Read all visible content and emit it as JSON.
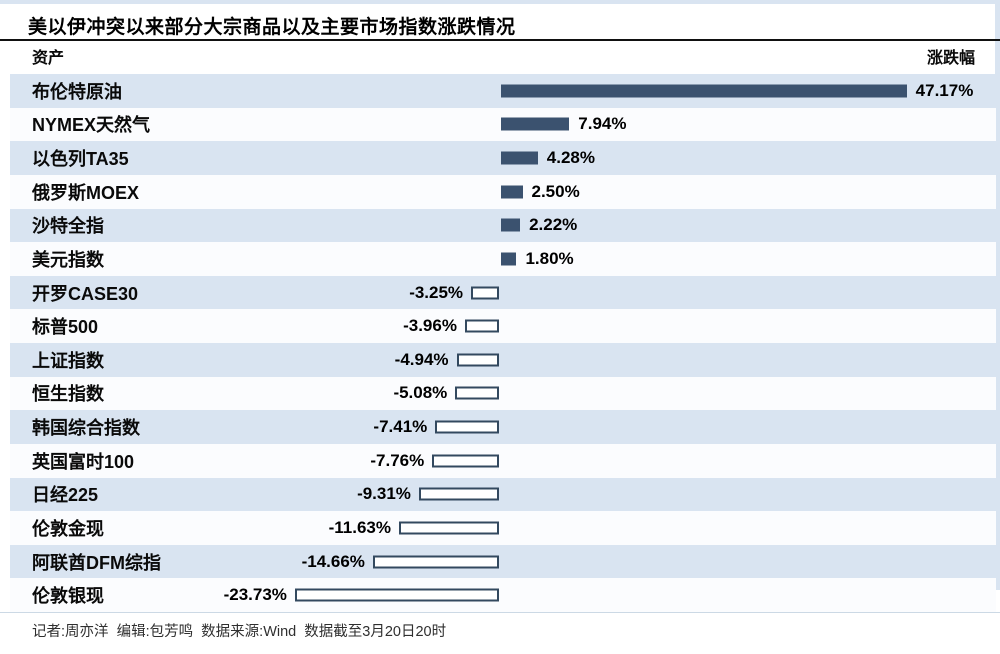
{
  "page": {
    "title": "美以伊冲突以来部分大宗商品以及主要市场指数涨跌情况",
    "columns": {
      "asset": "资产",
      "change": "涨跌幅"
    },
    "footer": "记者:周亦洋  编辑:包芳鸣  数据来源:Wind  数据截至3月20日20时"
  },
  "colors": {
    "bar_positive": "#3b526f",
    "bar_negative_border": "#33495f",
    "row_alt": "#d9e4f1",
    "row_base": "#fbfcfe",
    "axis_line": "#bdd2ea"
  },
  "chart_data": {
    "type": "bar",
    "orientation": "horizontal",
    "title": "美以伊冲突以来部分大宗商品以及主要市场指数涨跌情况",
    "xlabel": "涨跌幅",
    "ylabel": "资产",
    "xlim": [
      -25,
      50
    ],
    "baseline": 0,
    "grid": false,
    "legend": "none",
    "categories": [
      "布伦特原油",
      "NYMEX天然气",
      "以色列TA35",
      "俄罗斯MOEX",
      "沙特全指",
      "美元指数",
      "开罗CASE30",
      "标普500",
      "上证指数",
      "恒生指数",
      "韩国综合指数",
      "英国富时100",
      "日经225",
      "伦敦金现",
      "阿联酋DFM综指",
      "伦敦银现"
    ],
    "values": [
      47.17,
      7.94,
      4.28,
      2.5,
      2.22,
      1.8,
      -3.25,
      -3.96,
      -4.94,
      -5.08,
      -7.41,
      -7.76,
      -9.31,
      -11.63,
      -14.66,
      -23.73
    ],
    "value_labels": [
      "47.17%",
      "7.94%",
      "4.28%",
      "2.50%",
      "2.22%",
      "1.80%",
      "-3.25%",
      "-3.96%",
      "-4.94%",
      "-5.08%",
      "-7.41%",
      "-7.76%",
      "-9.31%",
      "-11.63%",
      "-14.66%",
      "-23.73%"
    ],
    "source": "Wind",
    "as_of": "3月20日20时",
    "reporter": "周亦洋",
    "editor": "包芳鸣"
  }
}
